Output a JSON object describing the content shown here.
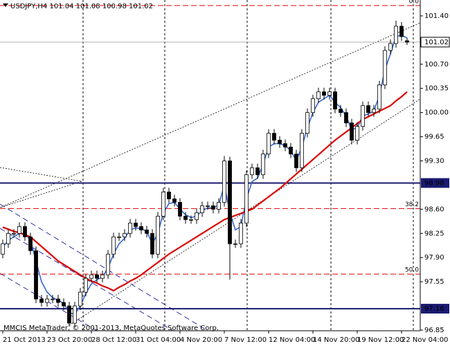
{
  "chart_data": {
    "type": "candlestick",
    "title": "USDJPY,H4  101.04 101.08 100.98 101.02",
    "watermark": "MMCIS MetaTrader, © 2001-2013, MetaQuotes Software Corp.",
    "categories": [
      "21 Oct 2013",
      null,
      null,
      null,
      null,
      null,
      null,
      null,
      "23 Oct 20:00",
      null,
      null,
      null,
      null,
      null,
      null,
      null,
      "28 Oct 12:00",
      null,
      null,
      null,
      null,
      null,
      null,
      null,
      "31 Oct 04:00",
      null,
      null,
      null,
      null,
      null,
      null,
      null,
      "4 Nov 20:00",
      null,
      null,
      null,
      null,
      null,
      null,
      null,
      "7 Nov 12:00",
      null,
      null,
      null,
      null,
      null,
      null,
      null,
      "12 Nov 04:00",
      null,
      null,
      null,
      null,
      null,
      null,
      null,
      "14 Nov 20:00",
      null,
      null,
      null,
      null,
      null,
      null,
      null,
      "19 Nov 12:00",
      null,
      null,
      null,
      null,
      null,
      null,
      null,
      "22 Nov 04:00",
      null
    ],
    "open": [
      97.95,
      98.1,
      98.25,
      98.25,
      98.35,
      98.2,
      98.0,
      97.3,
      97.25,
      97.3,
      97.3,
      97.25,
      97.2,
      96.95,
      97.2,
      97.4,
      97.6,
      97.65,
      97.6,
      97.65,
      97.95,
      98.2,
      98.2,
      98.25,
      98.4,
      98.35,
      98.3,
      98.25,
      97.95,
      98.5,
      98.85,
      98.75,
      98.7,
      98.5,
      98.45,
      98.45,
      98.55,
      98.65,
      98.65,
      98.6,
      98.7,
      99.3,
      98.1,
      98.1,
      98.4,
      99.1,
      99.2,
      99.1,
      99.4,
      99.7,
      99.6,
      99.55,
      99.5,
      99.4,
      99.2,
      99.7,
      100.0,
      100.2,
      100.3,
      100.25,
      100.3,
      100.05,
      100.0,
      99.85,
      99.6,
      99.8,
      100.1,
      100.0,
      100.05,
      100.4,
      100.9,
      101.0,
      101.25,
      101.04
    ],
    "high": [
      98.16,
      98.31,
      98.31,
      98.41,
      98.41,
      98.26,
      98.06,
      97.36,
      97.36,
      97.36,
      97.36,
      97.31,
      97.26,
      97.26,
      97.46,
      97.66,
      97.71,
      97.71,
      97.71,
      98.01,
      98.26,
      98.26,
      98.31,
      98.46,
      98.46,
      98.41,
      98.36,
      98.31,
      98.56,
      98.91,
      98.91,
      98.81,
      98.76,
      98.56,
      98.51,
      98.61,
      98.71,
      98.71,
      98.71,
      98.76,
      99.37,
      99.36,
      98.16,
      98.46,
      99.16,
      99.26,
      99.26,
      99.46,
      99.76,
      99.76,
      99.66,
      99.61,
      99.56,
      99.46,
      99.76,
      100.06,
      100.26,
      100.36,
      100.36,
      100.36,
      100.36,
      100.11,
      100.06,
      99.91,
      99.86,
      100.16,
      100.16,
      100.11,
      100.46,
      100.96,
      101.06,
      101.33,
      101.31,
      101.08
    ],
    "low": [
      97.89,
      98.04,
      98.19,
      98.19,
      98.14,
      97.94,
      97.24,
      97.19,
      97.19,
      97.24,
      97.19,
      97.14,
      96.9,
      96.89,
      97.14,
      97.34,
      97.54,
      97.54,
      97.54,
      97.59,
      97.89,
      98.14,
      98.14,
      98.19,
      98.29,
      98.24,
      98.19,
      97.89,
      97.89,
      98.44,
      98.69,
      98.64,
      98.44,
      98.39,
      98.39,
      98.39,
      98.49,
      98.59,
      98.54,
      98.54,
      98.64,
      97.58,
      98.04,
      98.04,
      98.34,
      99.04,
      99.04,
      99.04,
      99.34,
      99.54,
      99.49,
      99.44,
      99.34,
      99.14,
      99.14,
      99.64,
      99.94,
      100.14,
      100.19,
      100.19,
      99.99,
      99.94,
      99.79,
      99.54,
      99.54,
      99.74,
      99.94,
      99.94,
      99.99,
      100.34,
      100.84,
      100.94,
      101.04,
      100.98
    ],
    "close": [
      98.1,
      98.25,
      98.25,
      98.35,
      98.2,
      98.0,
      97.3,
      97.25,
      97.3,
      97.3,
      97.25,
      97.2,
      96.95,
      97.2,
      97.4,
      97.6,
      97.65,
      97.6,
      97.65,
      97.95,
      98.2,
      98.2,
      98.25,
      98.4,
      98.35,
      98.3,
      98.25,
      97.95,
      98.5,
      98.85,
      98.75,
      98.7,
      98.5,
      98.45,
      98.45,
      98.55,
      98.65,
      98.65,
      98.6,
      98.7,
      99.3,
      98.1,
      98.1,
      98.4,
      99.1,
      99.2,
      99.1,
      99.4,
      99.7,
      99.6,
      99.55,
      99.5,
      99.4,
      99.2,
      99.7,
      100.0,
      100.2,
      100.3,
      100.25,
      100.3,
      100.05,
      100.0,
      99.85,
      99.6,
      99.8,
      100.1,
      100.0,
      100.05,
      100.4,
      100.9,
      101.0,
      101.25,
      101.1,
      101.02
    ],
    "up_color": "#ffffff",
    "down_color": "#000000",
    "ma_lines": [
      {
        "color": "#3366cc",
        "values": [
          98.05,
          98.15,
          98.2,
          98.25,
          98.25,
          98.15,
          97.85,
          97.55,
          97.4,
          97.32,
          97.28,
          97.24,
          97.1,
          97.08,
          97.2,
          97.38,
          97.52,
          97.58,
          97.62,
          97.75,
          97.95,
          98.1,
          98.18,
          98.3,
          98.33,
          98.32,
          98.28,
          98.1,
          98.25,
          98.55,
          98.68,
          98.7,
          98.6,
          98.52,
          98.48,
          98.5,
          98.58,
          98.62,
          98.62,
          98.66,
          98.95,
          98.55,
          98.3,
          98.35,
          98.75,
          99.0,
          99.05,
          99.25,
          99.5,
          99.55,
          99.55,
          99.52,
          99.45,
          99.3,
          99.5,
          99.78,
          100.0,
          100.15,
          100.2,
          100.25,
          100.15,
          100.07,
          99.95,
          99.75,
          99.78,
          99.95,
          99.98,
          100.02,
          100.25,
          100.62,
          100.85,
          101.1,
          101.12,
          101.08
        ]
      },
      {
        "color": "#dd0000",
        "values": [
          98.34,
          98.31,
          98.28,
          98.26,
          98.23,
          98.2,
          98.13,
          98.06,
          97.99,
          97.92,
          97.85,
          97.8,
          97.75,
          97.7,
          97.65,
          97.6,
          97.56,
          97.53,
          97.49,
          97.46,
          97.42,
          97.47,
          97.51,
          97.56,
          97.6,
          97.65,
          97.71,
          97.77,
          97.83,
          97.89,
          97.95,
          98.0,
          98.05,
          98.1,
          98.15,
          98.2,
          98.25,
          98.3,
          98.35,
          98.4,
          98.45,
          98.48,
          98.51,
          98.54,
          98.57,
          98.6,
          98.66,
          98.72,
          98.78,
          98.84,
          98.9,
          98.97,
          99.04,
          99.11,
          99.18,
          99.25,
          99.32,
          99.39,
          99.46,
          99.53,
          99.6,
          99.66,
          99.72,
          99.78,
          99.84,
          99.9,
          99.94,
          99.98,
          100.02,
          100.06,
          100.1,
          100.17,
          100.23,
          100.3
        ]
      }
    ],
    "ylim": [
      96.84,
      101.63
    ],
    "yticks": [
      {
        "value": 101.4,
        "label": "101.40"
      },
      {
        "value": 100.7,
        "label": "100.70"
      },
      {
        "value": 100.35,
        "label": "100.35"
      },
      {
        "value": 100.0,
        "label": "100.00"
      },
      {
        "value": 99.65,
        "label": "99.65"
      },
      {
        "value": 99.3,
        "label": "99.30"
      },
      {
        "value": 98.6,
        "label": "98.60"
      },
      {
        "value": 98.25,
        "label": "98.25"
      },
      {
        "value": 97.9,
        "label": "97.90"
      },
      {
        "value": 97.55,
        "label": "97.55"
      },
      {
        "value": 96.85,
        "label": "96.85"
      }
    ],
    "current_price": {
      "value": 101.02,
      "label": "101.02"
    },
    "hlines": [
      {
        "value": 98.98,
        "label": "98.98"
      },
      {
        "value": 97.16,
        "label": "97.16"
      }
    ],
    "fibo_levels": [
      {
        "price": 101.55,
        "label": "0.0"
      },
      {
        "price": 98.61,
        "label": "38.2"
      },
      {
        "price": 97.66,
        "label": "50.0"
      }
    ]
  }
}
